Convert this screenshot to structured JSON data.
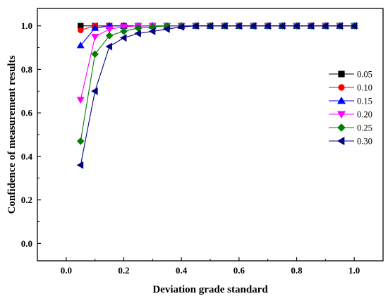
{
  "chart_data": {
    "type": "line",
    "xlabel": "Deviation grade standard",
    "ylabel": "Confidence of measurement results",
    "xlim": [
      -0.1,
      1.1
    ],
    "ylim": [
      -0.08,
      1.08
    ],
    "xticks": [
      "0.0",
      "0.2",
      "0.4",
      "0.6",
      "0.8",
      "1.0"
    ],
    "yticks": [
      "0.0",
      "0.2",
      "0.4",
      "0.6",
      "0.8",
      "1.0"
    ],
    "grid": false,
    "legend_position": "right",
    "x": [
      0.05,
      0.1,
      0.15,
      0.2,
      0.25,
      0.3,
      0.35,
      0.4,
      0.45,
      0.5,
      0.55,
      0.6,
      0.65,
      0.7,
      0.75,
      0.8,
      0.85,
      0.9,
      0.95,
      1.0
    ],
    "series": [
      {
        "name": "0.05",
        "color": "#000000",
        "marker": "square",
        "values": [
          1.0,
          1.0,
          1.0,
          1.0,
          1.0,
          1.0,
          1.0,
          1.0,
          1.0,
          1.0,
          1.0,
          1.0,
          1.0,
          1.0,
          1.0,
          1.0,
          1.0,
          1.0,
          1.0,
          1.0
        ]
      },
      {
        "name": "0.10",
        "color": "#ff0000",
        "marker": "circle",
        "values": [
          0.98,
          1.0,
          1.0,
          1.0,
          1.0,
          1.0,
          1.0,
          1.0,
          1.0,
          1.0,
          1.0,
          1.0,
          1.0,
          1.0,
          1.0,
          1.0,
          1.0,
          1.0,
          1.0,
          1.0
        ]
      },
      {
        "name": "0.15",
        "color": "#0000ff",
        "marker": "triangle-up",
        "values": [
          0.91,
          0.99,
          1.0,
          1.0,
          1.0,
          1.0,
          1.0,
          1.0,
          1.0,
          1.0,
          1.0,
          1.0,
          1.0,
          1.0,
          1.0,
          1.0,
          1.0,
          1.0,
          1.0,
          1.0
        ]
      },
      {
        "name": "0.20",
        "color": "#ff00ff",
        "marker": "triangle-down",
        "values": [
          0.66,
          0.95,
          0.985,
          0.995,
          1.0,
          1.0,
          1.0,
          1.0,
          1.0,
          1.0,
          1.0,
          1.0,
          1.0,
          1.0,
          1.0,
          1.0,
          1.0,
          1.0,
          1.0,
          1.0
        ]
      },
      {
        "name": "0.25",
        "color": "#008000",
        "marker": "diamond",
        "values": [
          0.47,
          0.87,
          0.955,
          0.975,
          0.99,
          0.995,
          1.0,
          1.0,
          1.0,
          1.0,
          1.0,
          1.0,
          1.0,
          1.0,
          1.0,
          1.0,
          1.0,
          1.0,
          1.0,
          1.0
        ]
      },
      {
        "name": "0.30",
        "color": "#000080",
        "marker": "triangle-left",
        "values": [
          0.36,
          0.7,
          0.905,
          0.945,
          0.965,
          0.975,
          0.985,
          0.995,
          1.0,
          1.0,
          1.0,
          1.0,
          1.0,
          1.0,
          1.0,
          1.0,
          1.0,
          1.0,
          1.0,
          1.0
        ]
      }
    ]
  }
}
